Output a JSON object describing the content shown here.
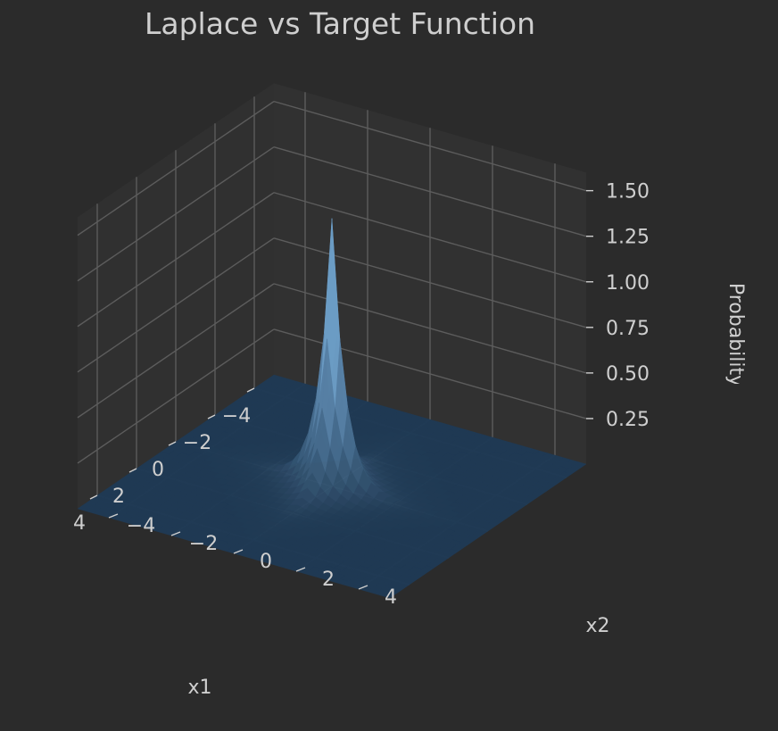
{
  "chart_data": {
    "type": "surface3d",
    "title": "Laplace vs Target Function",
    "xlabel": "x1",
    "ylabel": "x2",
    "zlabel": "Probability",
    "x_ticks": [
      -4,
      -2,
      0,
      2,
      4
    ],
    "y_ticks": [
      -4,
      -2,
      0,
      2,
      4
    ],
    "z_ticks": [
      0.25,
      0.5,
      0.75,
      1.0,
      1.25,
      1.5
    ],
    "z_tick_labels": [
      "0.25",
      "0.50",
      "0.75",
      "1.00",
      "1.25",
      "1.50"
    ],
    "xlim": [
      -5,
      5
    ],
    "ylim": [
      -5,
      5
    ],
    "zlim": [
      0,
      1.6
    ],
    "series": [
      {
        "kind": "surface",
        "function": "Laplace density centred at (0, 0), peak height ~1.47",
        "peak": {
          "x1": 0,
          "x2": 0,
          "value": 1.47
        },
        "color": "#5aa0dd"
      }
    ],
    "grid": true,
    "theme": "dark"
  },
  "colors": {
    "background": "#2b2b2b",
    "pane_floor": "#333333",
    "pane_left": "#303030",
    "pane_back": "#313131",
    "grid": "#5c5c5c",
    "text": "#cfcfcf",
    "surface_low": "#1f3a55",
    "surface_high": "#8cc4f2"
  }
}
